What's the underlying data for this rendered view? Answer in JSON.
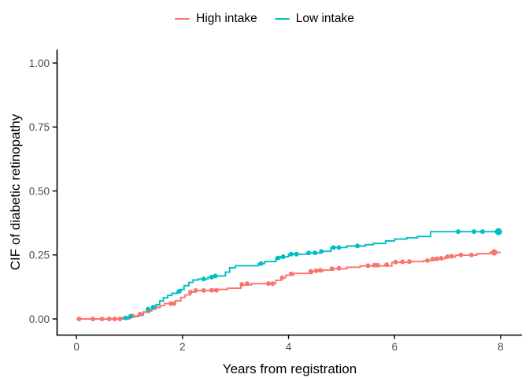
{
  "figure": {
    "background": "#FFFFFF"
  },
  "legend": {
    "position": "top-center",
    "items": [
      {
        "label": "High intake",
        "color": "#F8766D"
      },
      {
        "label": "Low intake",
        "color": "#00BFC4"
      }
    ]
  },
  "style": {
    "axis_line_color": "#000000",
    "tick_label_color": "#4D4D4D",
    "axis_title_color": "#000000",
    "high_intake_color": "#F8766D",
    "low_intake_color": "#00BFC4"
  },
  "chart_data": {
    "type": "line",
    "variant": "step-function-cumulative-incidence",
    "title": "",
    "xlabel": "Years from registration",
    "ylabel": "CIF of diabetic retinopathy",
    "xlim": [
      0,
      8
    ],
    "ylim": [
      0,
      1
    ],
    "grid": false,
    "legend_position": "top",
    "x_ticks": [
      {
        "value": 0,
        "label": "0"
      },
      {
        "value": 2,
        "label": "2"
      },
      {
        "value": 4,
        "label": "4"
      },
      {
        "value": 6,
        "label": "6"
      },
      {
        "value": 8,
        "label": "8"
      }
    ],
    "y_ticks": [
      {
        "value": 0,
        "label": "0.00"
      },
      {
        "value": 0.25,
        "label": "0.25"
      },
      {
        "value": 0.5,
        "label": "0.50"
      },
      {
        "value": 0.75,
        "label": "0.75"
      },
      {
        "value": 1,
        "label": "1.00"
      }
    ],
    "series": [
      {
        "name": "High intake",
        "color": "#F8766D",
        "end_x": 8.0,
        "steps": [
          [
            0,
            0
          ],
          [
            1.0,
            0.006
          ],
          [
            1.08,
            0.012
          ],
          [
            1.18,
            0.019
          ],
          [
            1.26,
            0.026
          ],
          [
            1.34,
            0.031
          ],
          [
            1.42,
            0.038
          ],
          [
            1.5,
            0.045
          ],
          [
            1.58,
            0.052
          ],
          [
            1.66,
            0.06
          ],
          [
            1.87,
            0.071
          ],
          [
            1.97,
            0.084
          ],
          [
            2.05,
            0.094
          ],
          [
            2.15,
            0.105
          ],
          [
            2.22,
            0.111
          ],
          [
            2.6,
            0.115
          ],
          [
            2.85,
            0.12
          ],
          [
            3.1,
            0.133
          ],
          [
            3.3,
            0.138
          ],
          [
            3.76,
            0.151
          ],
          [
            3.86,
            0.161
          ],
          [
            3.95,
            0.171
          ],
          [
            4.1,
            0.178
          ],
          [
            4.45,
            0.186
          ],
          [
            4.65,
            0.191
          ],
          [
            4.85,
            0.196
          ],
          [
            5.1,
            0.202
          ],
          [
            5.35,
            0.207
          ],
          [
            5.95,
            0.221
          ],
          [
            6.3,
            0.224
          ],
          [
            6.55,
            0.228
          ],
          [
            6.75,
            0.235
          ],
          [
            6.95,
            0.242
          ],
          [
            7.15,
            0.249
          ],
          [
            7.55,
            0.255
          ],
          [
            7.8,
            0.26
          ]
        ],
        "censor_marks": [
          [
            0.05,
            0
          ],
          [
            0.31,
            0
          ],
          [
            0.48,
            0
          ],
          [
            0.62,
            0
          ],
          [
            0.72,
            0
          ],
          [
            0.82,
            0
          ],
          [
            1.05,
            0.012
          ],
          [
            1.2,
            0.019
          ],
          [
            1.36,
            0.031
          ],
          [
            1.78,
            0.06
          ],
          [
            1.84,
            0.06
          ],
          [
            2.15,
            0.105
          ],
          [
            2.25,
            0.111
          ],
          [
            2.4,
            0.111
          ],
          [
            2.55,
            0.112
          ],
          [
            2.64,
            0.112
          ],
          [
            3.12,
            0.135
          ],
          [
            3.22,
            0.138
          ],
          [
            3.62,
            0.138
          ],
          [
            3.7,
            0.138
          ],
          [
            3.88,
            0.161
          ],
          [
            4.05,
            0.176
          ],
          [
            4.42,
            0.186
          ],
          [
            4.52,
            0.188
          ],
          [
            4.6,
            0.19
          ],
          [
            4.82,
            0.196
          ],
          [
            4.95,
            0.198
          ],
          [
            5.5,
            0.208
          ],
          [
            5.62,
            0.21
          ],
          [
            5.68,
            0.21
          ],
          [
            5.85,
            0.212
          ],
          [
            6.02,
            0.222
          ],
          [
            6.15,
            0.223
          ],
          [
            6.28,
            0.224
          ],
          [
            6.62,
            0.228
          ],
          [
            6.72,
            0.234
          ],
          [
            6.8,
            0.235
          ],
          [
            6.88,
            0.237
          ],
          [
            7.0,
            0.243
          ],
          [
            7.08,
            0.245
          ],
          [
            7.25,
            0.25
          ],
          [
            7.45,
            0.25
          ],
          [
            7.88,
            0.26,
            4
          ]
        ]
      },
      {
        "name": "Low intake",
        "color": "#00BFC4",
        "end_x": 8.0,
        "steps": [
          [
            0,
            0
          ],
          [
            0.85,
            0.004
          ],
          [
            1.0,
            0.01
          ],
          [
            1.17,
            0.015
          ],
          [
            1.26,
            0.027
          ],
          [
            1.33,
            0.038
          ],
          [
            1.42,
            0.046
          ],
          [
            1.5,
            0.055
          ],
          [
            1.57,
            0.07
          ],
          [
            1.64,
            0.083
          ],
          [
            1.72,
            0.092
          ],
          [
            1.8,
            0.1
          ],
          [
            1.9,
            0.108
          ],
          [
            1.97,
            0.115
          ],
          [
            2.03,
            0.13
          ],
          [
            2.12,
            0.143
          ],
          [
            2.2,
            0.152
          ],
          [
            2.3,
            0.156
          ],
          [
            2.48,
            0.162
          ],
          [
            2.6,
            0.168
          ],
          [
            2.81,
            0.183
          ],
          [
            2.89,
            0.2
          ],
          [
            3.0,
            0.208
          ],
          [
            3.43,
            0.216
          ],
          [
            3.55,
            0.224
          ],
          [
            3.76,
            0.238
          ],
          [
            3.85,
            0.243
          ],
          [
            4.0,
            0.253
          ],
          [
            4.35,
            0.258
          ],
          [
            4.6,
            0.264
          ],
          [
            4.8,
            0.279
          ],
          [
            5.1,
            0.285
          ],
          [
            5.45,
            0.29
          ],
          [
            5.6,
            0.295
          ],
          [
            5.83,
            0.305
          ],
          [
            6.0,
            0.312
          ],
          [
            6.23,
            0.317
          ],
          [
            6.43,
            0.322
          ],
          [
            6.68,
            0.341
          ]
        ],
        "censor_marks": [
          [
            0.93,
            0.004
          ],
          [
            1.02,
            0.01
          ],
          [
            1.35,
            0.038
          ],
          [
            1.45,
            0.046
          ],
          [
            1.94,
            0.108
          ],
          [
            2.4,
            0.156
          ],
          [
            2.55,
            0.163
          ],
          [
            2.62,
            0.168
          ],
          [
            3.48,
            0.216
          ],
          [
            3.8,
            0.238
          ],
          [
            3.9,
            0.243
          ],
          [
            4.05,
            0.253
          ],
          [
            4.15,
            0.253
          ],
          [
            4.38,
            0.258
          ],
          [
            4.5,
            0.258
          ],
          [
            4.62,
            0.264
          ],
          [
            4.85,
            0.279
          ],
          [
            4.95,
            0.279
          ],
          [
            5.3,
            0.285
          ],
          [
            7.2,
            0.341
          ],
          [
            7.5,
            0.341
          ],
          [
            7.66,
            0.341
          ],
          [
            7.96,
            0.341,
            4.5
          ]
        ]
      }
    ]
  }
}
